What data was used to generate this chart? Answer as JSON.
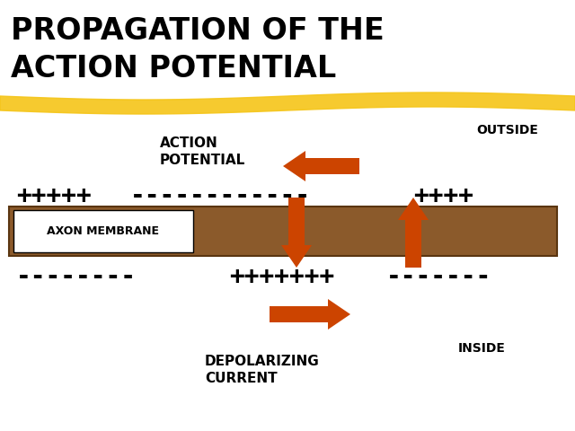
{
  "title_line1": "PROPAGATION OF THE",
  "title_line2": "ACTION POTENTIAL",
  "title_fontsize": 24,
  "bg_color": "#ffffff",
  "outside_label": "OUTSIDE",
  "inside_label": "INSIDE",
  "action_potential_label": "ACTION\nPOTENTIAL",
  "depolarizing_label": "DEPOLARIZING\nCURRENT",
  "axon_membrane_label": "AXON MEMBRANE",
  "outside_top_text": "+++++  ------------++++",
  "inside_left_text": "--------",
  "inside_right_text": "+++++++-------",
  "membrane_color": "#8B5A2B",
  "membrane_border_color": "#5a3510",
  "arrow_color": "#CC4400",
  "highlight_color": "#F5C518",
  "text_color": "#000000",
  "axon_box_color": "#ffffff"
}
